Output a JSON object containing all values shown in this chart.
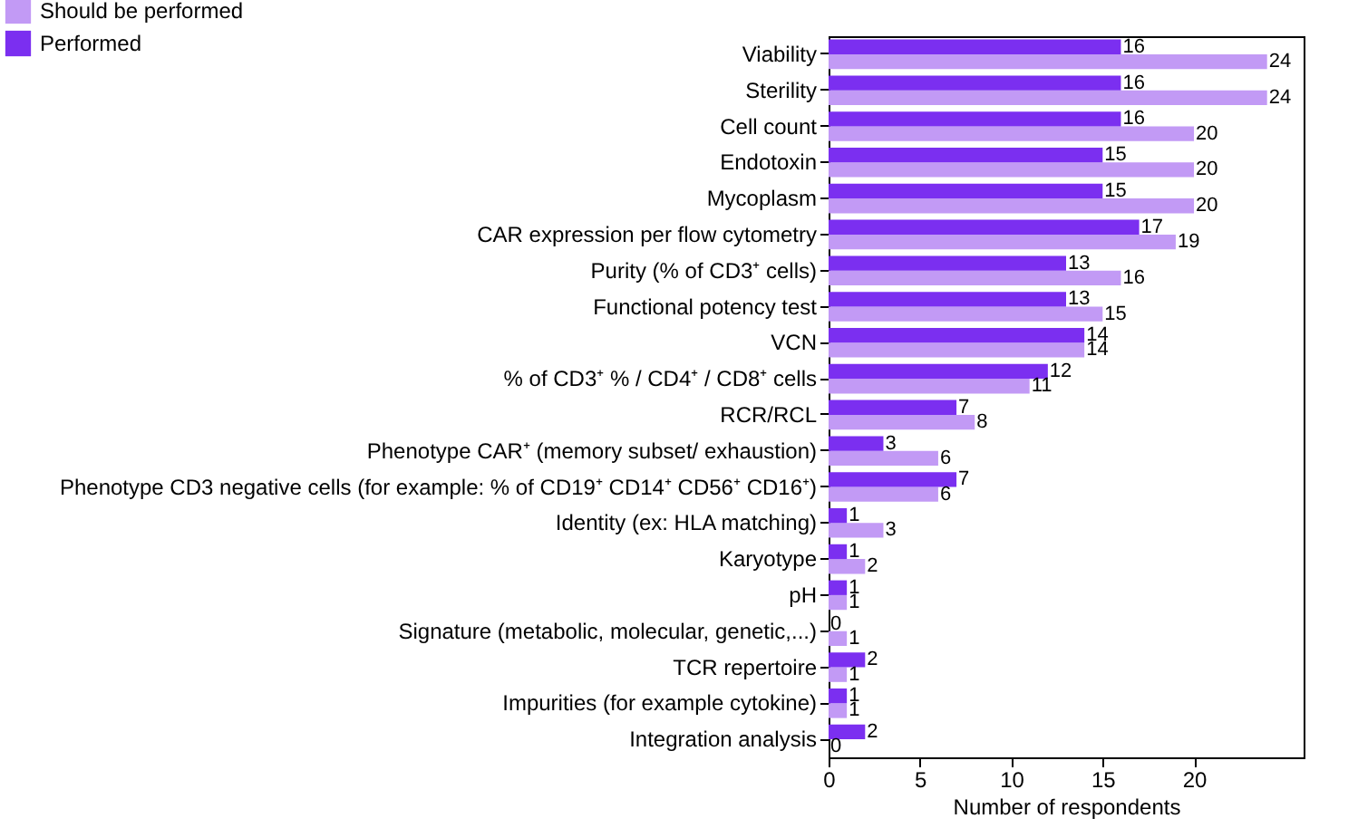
{
  "chart_data": {
    "type": "bar",
    "orientation": "horizontal",
    "categories": [
      "Viability",
      "Sterility",
      "Cell count",
      "Endotoxin",
      "Mycoplasm",
      "CAR expression per flow cytometry",
      "Purity (% of CD3⁺ cells)",
      "Functional potency test",
      "VCN",
      "% of CD3⁺ % / CD4⁺ / CD8⁺ cells",
      "RCR/RCL",
      "Phenotype CAR⁺ (memory subset/ exhaustion)",
      "Phenotype CD3 negative cells (for example: % of CD19⁺ CD14⁺ CD56⁺ CD16⁺)",
      "Identity (ex: HLA matching)",
      "Karyotype",
      "pH",
      "Signature (metabolic, molecular, genetic,...)",
      "TCR repertoire",
      "Impurities (for example cytokine)",
      "Integration analysis"
    ],
    "series": [
      {
        "name": "Should be performed",
        "color": "#c29af5",
        "values": [
          24,
          24,
          20,
          20,
          20,
          19,
          16,
          15,
          14,
          11,
          8,
          6,
          6,
          3,
          2,
          1,
          1,
          1,
          1,
          0
        ]
      },
      {
        "name": "Performed",
        "color": "#7b2ff0",
        "values": [
          16,
          16,
          16,
          15,
          15,
          17,
          13,
          13,
          14,
          12,
          7,
          3,
          7,
          1,
          1,
          1,
          0,
          2,
          1,
          2
        ]
      }
    ],
    "xlabel": "Number of respondents",
    "xlim": [
      0,
      26
    ],
    "xticks": [
      0,
      5,
      10,
      15,
      20
    ],
    "data_labels": true,
    "grid": false,
    "legend": "top left"
  }
}
